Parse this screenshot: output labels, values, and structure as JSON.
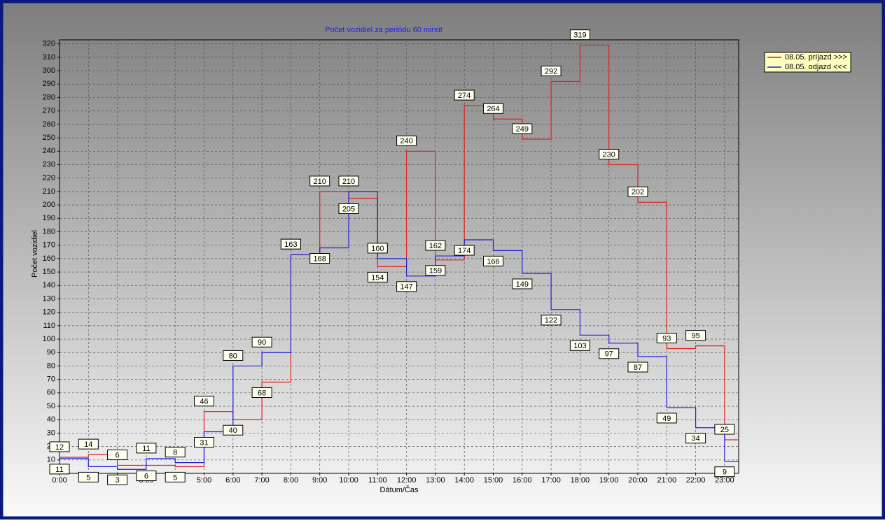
{
  "chart_data": {
    "type": "step",
    "title": "Počet vozidiel za periódu 60 minút",
    "x_label": "Dátum/Čas",
    "y_label": "Počet vozidiel",
    "categories": [
      "0:00",
      "1:00",
      "2:00",
      "3:00",
      "4:00",
      "5:00",
      "6:00",
      "7:00",
      "8:00",
      "9:00",
      "10:00",
      "11:00",
      "12:00",
      "13:00",
      "14:00",
      "15:00",
      "16:00",
      "17:00",
      "18:00",
      "19:00",
      "20:00",
      "21:00",
      "22:00",
      "23:00"
    ],
    "series": [
      {
        "name": "08.05.  príjazd >>>",
        "color": "#e02020",
        "values": [
          12,
          14,
          6,
          6,
          5,
          46,
          40,
          68,
          163,
          210,
          205,
          154,
          240,
          159,
          274,
          264,
          249,
          292,
          319,
          230,
          202,
          93,
          95,
          25
        ]
      },
      {
        "name": "08.05.  odjazd <<<",
        "color": "#1f1fd8",
        "values": [
          11,
          5,
          3,
          11,
          8,
          31,
          80,
          90,
          163,
          168,
          210,
          160,
          147,
          162,
          174,
          166,
          149,
          122,
          103,
          97,
          87,
          49,
          34,
          9
        ]
      }
    ],
    "ylim": [
      0,
      323
    ],
    "yticks": [
      10,
      20,
      30,
      40,
      50,
      60,
      70,
      80,
      90,
      100,
      110,
      120,
      130,
      140,
      150,
      160,
      170,
      180,
      190,
      200,
      210,
      220,
      230,
      240,
      250,
      260,
      270,
      280,
      290,
      300,
      310,
      320
    ],
    "grid": true,
    "legend": "top-right"
  }
}
